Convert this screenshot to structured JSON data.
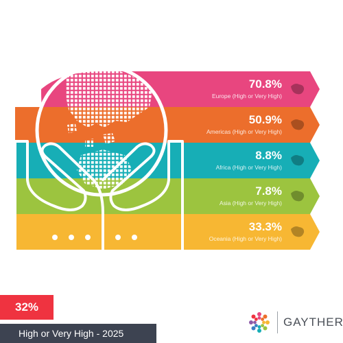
{
  "chart_data": {
    "type": "bar",
    "categories": [
      "Europe",
      "Americas",
      "Africa",
      "Asia",
      "Oceania"
    ],
    "values": [
      70.8,
      50.9,
      8.8,
      7.8,
      33.3
    ],
    "value_labels": [
      "70.8%",
      "50.9%",
      "8.8%",
      "7.8%",
      "33.3%"
    ],
    "row_labels": [
      "Europe (High or Very High)",
      "Americas (High or Very High)",
      "Africa (High or Very High)",
      "Asia (High or Very High)",
      "Oceania (High or Very High)"
    ],
    "colors": [
      "#e8467f",
      "#ec6e2c",
      "#17aeb6",
      "#9cc43f",
      "#f7b733"
    ]
  },
  "summary": {
    "value_label": "32%",
    "caption": "High or Very High - 2025",
    "badge_color": "#ef3340",
    "caption_bg": "#3d4351"
  },
  "brand": {
    "name": "GAYTHER"
  },
  "icons": {
    "globe": "world-globe-icon",
    "hands": "cupped-hands-icon",
    "regions": [
      "europe-map-icon",
      "americas-map-icon",
      "africa-map-icon",
      "asia-map-icon",
      "oceania-map-icon"
    ],
    "logo": "people-circle-logo-icon"
  }
}
